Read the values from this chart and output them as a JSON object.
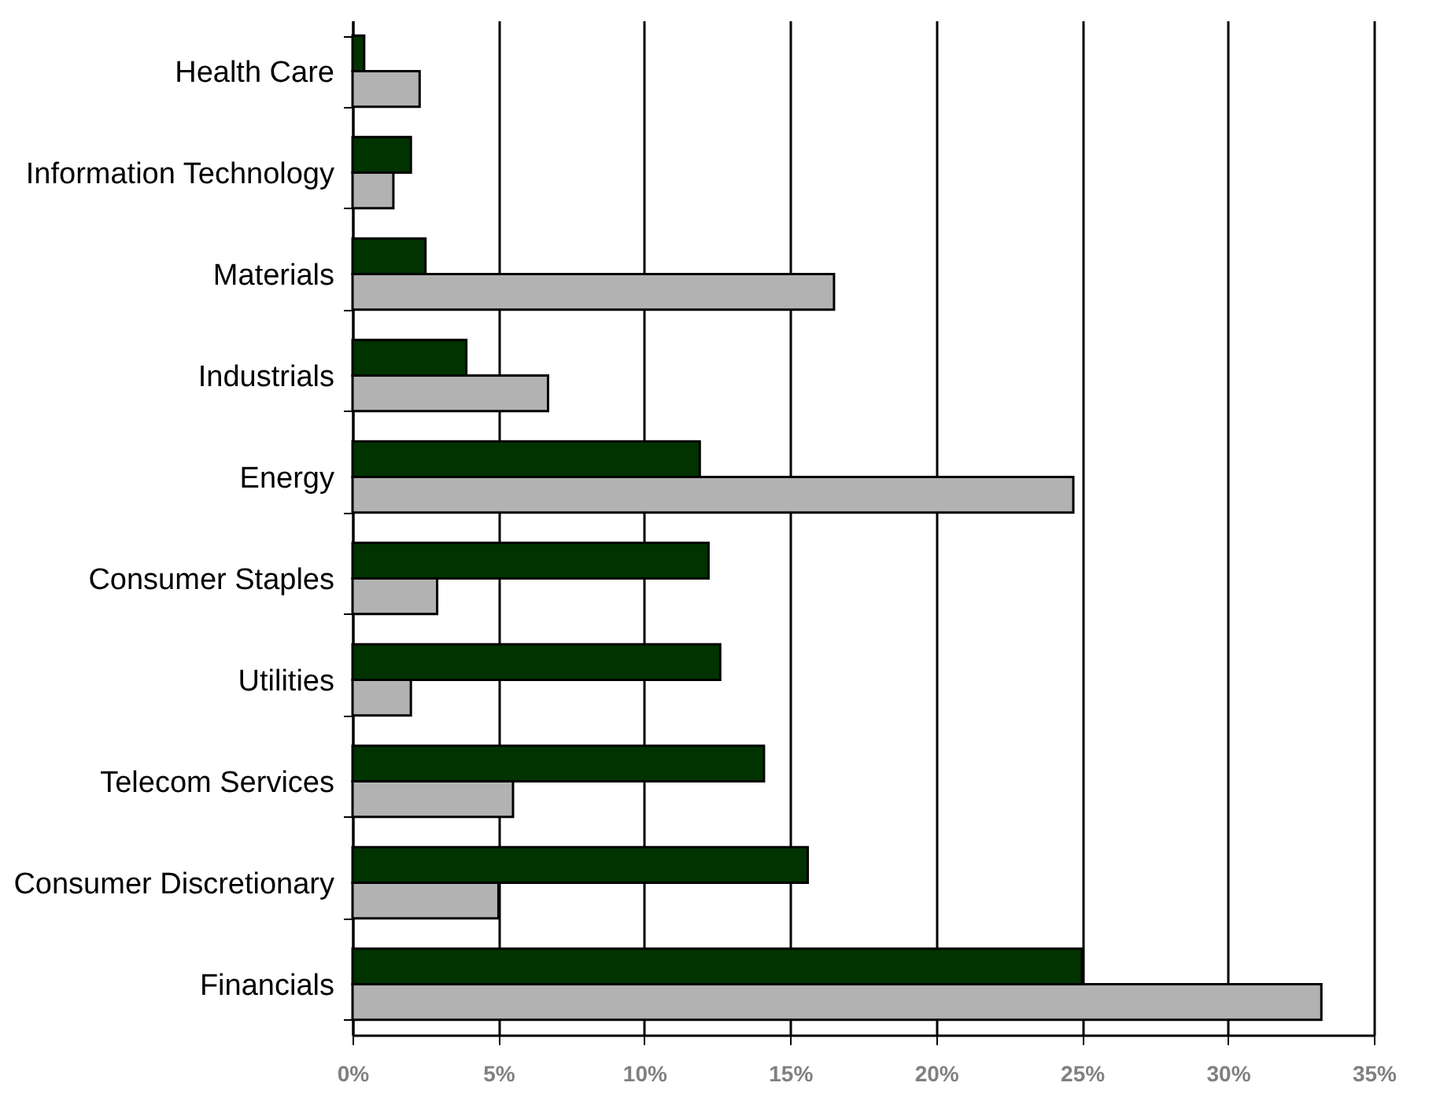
{
  "chart_data": {
    "type": "bar",
    "orientation": "horizontal",
    "categories": [
      "Health Care",
      "Information Technology",
      "Materials",
      "Industrials",
      "Energy",
      "Consumer Staples",
      "Utilities",
      "Telecom Services",
      "Consumer Discretionary",
      "Financials"
    ],
    "series": [
      {
        "color": "#003300",
        "values": [
          0.4,
          2.0,
          2.5,
          3.9,
          11.9,
          12.2,
          12.6,
          14.1,
          15.6,
          25.0
        ]
      },
      {
        "color": "#b2b2b2",
        "values": [
          2.3,
          1.4,
          16.5,
          6.7,
          24.7,
          2.9,
          2.0,
          5.5,
          5.0,
          33.2
        ]
      }
    ],
    "xlim": [
      0,
      35
    ],
    "xticks": [
      {
        "value": 0,
        "label": "0%"
      },
      {
        "value": 5,
        "label": "5%"
      },
      {
        "value": 10,
        "label": "10%"
      },
      {
        "value": 15,
        "label": "15%"
      },
      {
        "value": 20,
        "label": "20%"
      },
      {
        "value": 25,
        "label": "25%"
      },
      {
        "value": 30,
        "label": "30%"
      },
      {
        "value": 35,
        "label": "35%"
      }
    ],
    "grid": "x",
    "legend": false
  }
}
